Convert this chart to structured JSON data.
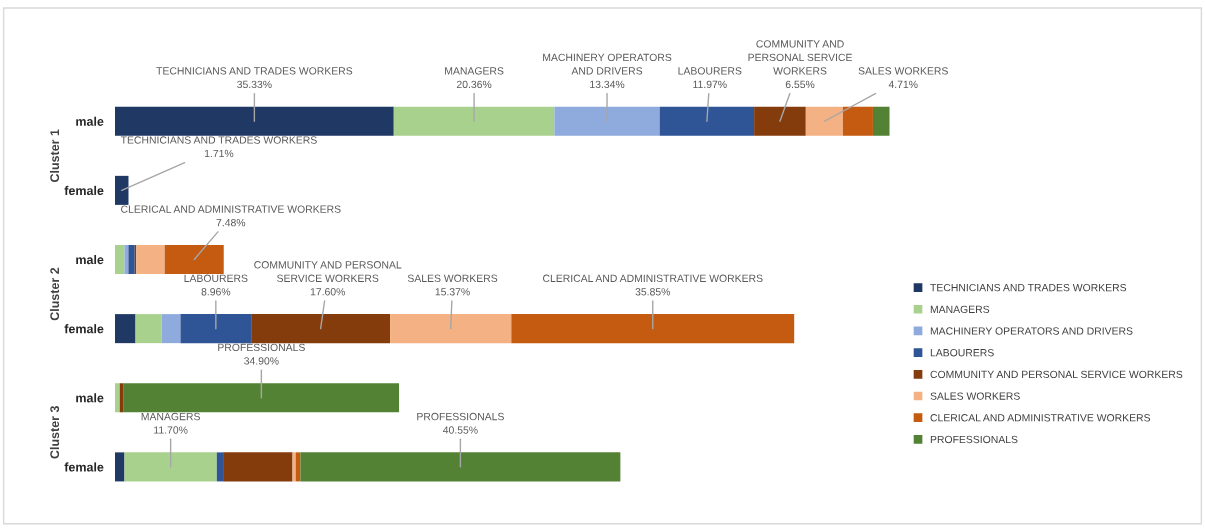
{
  "chart_data": {
    "type": "bar",
    "orientation": "horizontal",
    "stacked": true,
    "legend": "right",
    "categories": [
      "male",
      "female",
      "male",
      "female",
      "male",
      "female"
    ],
    "annotations": [
      "Cluster 1",
      "Cluster 2",
      "Cluster 3"
    ],
    "series": [
      {
        "name": "TECHNICIANS AND TRADES WORKERS",
        "color": "#1f3864",
        "values": [
          35.33,
          1.71,
          0,
          2.6,
          0,
          1.2
        ],
        "value_labels": [
          "TECHNICIANS AND TRADES WORKERS\n35.33%",
          "TECHNICIANS AND TRADES WORKERS\n1.71%",
          null,
          null,
          null,
          null
        ]
      },
      {
        "name": "MANAGERS",
        "color": "#a9d18e",
        "values": [
          20.36,
          0,
          1.2,
          3.3,
          0.6,
          11.7
        ],
        "value_labels": [
          "MANAGERS\n20.36%",
          null,
          null,
          null,
          null,
          "MANAGERS\n11.70%"
        ]
      },
      {
        "name": "MACHINERY OPERATORS AND DRIVERS",
        "color": "#8faadc",
        "values": [
          13.34,
          0,
          0.5,
          2.4,
          0,
          0
        ],
        "value_labels": [
          "MACHINERY OPERATORS\nAND DRIVERS\n13.34%",
          null,
          null,
          null,
          null,
          null
        ]
      },
      {
        "name": "LABOURERS",
        "color": "#2f5597",
        "values": [
          11.97,
          0,
          0.8,
          8.96,
          0,
          0.8
        ],
        "value_labels": [
          "LABOURERS\n11.97%",
          null,
          null,
          "LABOURERS\n8.96%",
          null,
          null
        ]
      },
      {
        "name": "COMMUNITY AND PERSONAL SERVICE WORKERS",
        "color": "#843c0c",
        "values": [
          6.55,
          0,
          0.2,
          17.6,
          0.5,
          8.8
        ],
        "value_labels": [
          "COMMUNITY AND\nPERSONAL SERVICE\nWORKERS\n6.55%",
          null,
          null,
          "COMMUNITY AND PERSONAL\nSERVICE WORKERS\n17.60%",
          null,
          null
        ]
      },
      {
        "name": "SALES WORKERS",
        "color": "#f4b183",
        "values": [
          4.71,
          0,
          3.6,
          15.37,
          0,
          0.4
        ],
        "value_labels": [
          "SALES WORKERS\n4.71%",
          null,
          null,
          "SALES WORKERS\n15.37%",
          null,
          null
        ]
      },
      {
        "name": "CLERICAL AND ADMINISTRATIVE WORKERS",
        "color": "#c55a11",
        "values": [
          3.8,
          0,
          7.48,
          35.85,
          0,
          0.6
        ],
        "value_labels": [
          null,
          null,
          "CLERICAL AND ADMINISTRATIVE WORKERS\n7.48%",
          "CLERICAL AND ADMINISTRATIVE WORKERS\n35.85%",
          null,
          null
        ]
      },
      {
        "name": "PROFESSIONALS",
        "color": "#548235",
        "values": [
          2.1,
          0,
          0,
          0,
          34.9,
          40.55
        ],
        "value_labels": [
          null,
          null,
          null,
          null,
          "PROFESSIONALS\n34.90%",
          "PROFESSIONALS\n40.55%"
        ]
      }
    ]
  }
}
